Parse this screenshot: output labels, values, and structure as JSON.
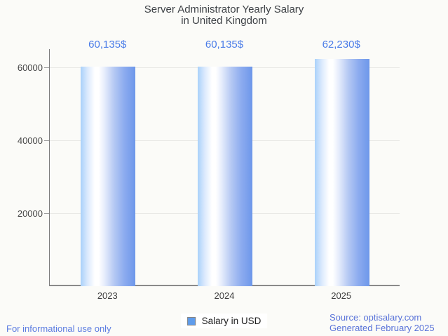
{
  "colors": {
    "background": "#fbfbf8",
    "title": "#3e4246",
    "axis_label": "#464646",
    "value_label": "#4a7ce8",
    "bar_gradient_left": "#a9d1fa",
    "bar_gradient_highlight": "#ffffff",
    "bar_gradient_right": "#6d97ea",
    "legend_swatch": "#5f9ceb",
    "gridline": "#e8e8e5",
    "footer_blue": "#5b7ce1",
    "source_blue": "#5973d9"
  },
  "chart_data": {
    "type": "bar",
    "title": "Server Administrator Yearly Salary in United Kingdom",
    "title_lines": [
      "Server Administrator Yearly Salary",
      "in United Kingdom"
    ],
    "categories": [
      "2023",
      "2024",
      "2025"
    ],
    "series": [
      {
        "name": "Salary in USD",
        "values": [
          60135,
          60135,
          62230
        ]
      }
    ],
    "value_labels": [
      "60,135$",
      "60,135$",
      "62,230$"
    ],
    "xlabel": "",
    "ylabel": "",
    "ylim": [
      0,
      64900
    ],
    "yticks": [
      20000,
      40000,
      60000
    ],
    "ytick_labels": [
      "20000",
      "40000",
      "60000"
    ],
    "grid": true,
    "legend_position": "bottom"
  },
  "legend": {
    "label": "Salary in USD"
  },
  "footer": {
    "left": "For informational use only",
    "source_line1": "Source: optisalary.com",
    "source_line2": "Generated February 2025"
  }
}
